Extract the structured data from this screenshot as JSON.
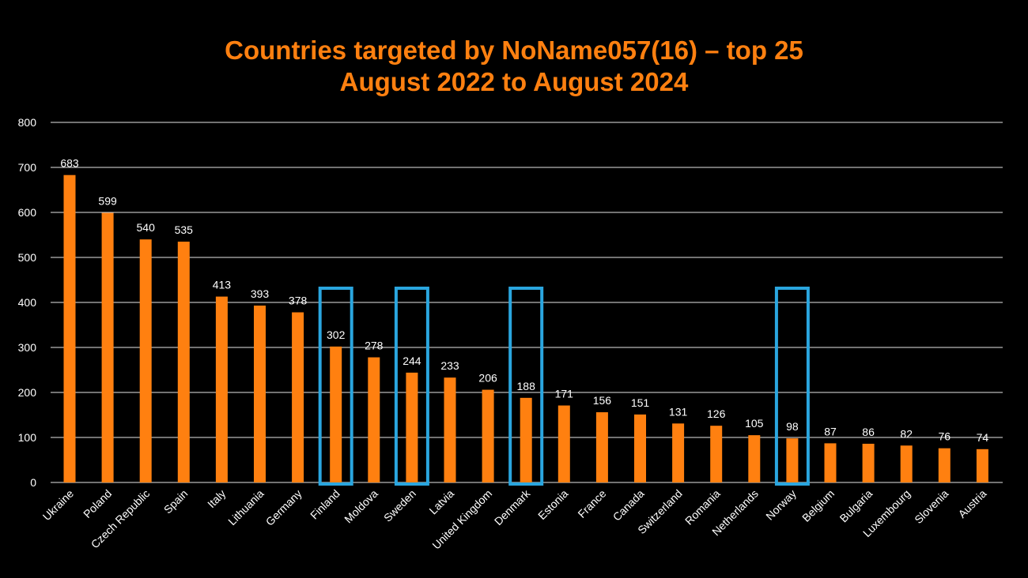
{
  "colors": {
    "background": "#000000",
    "bar": "#ff8010",
    "title": "#ff8010",
    "grid": "#ffffff",
    "highlight_box": "#2aa6df",
    "text": "#ffffff"
  },
  "chart_data": {
    "type": "bar",
    "title_lines": [
      "Countries targeted by NoName057(16) – top 25",
      "August 2022 to August 2024"
    ],
    "xlabel": "",
    "ylabel": "",
    "ylim": [
      0,
      800
    ],
    "yticks": [
      0,
      100,
      200,
      300,
      400,
      500,
      600,
      700,
      800
    ],
    "grid": true,
    "legend": "none",
    "categories": [
      "Ukraine",
      "Poland",
      "Czech Republic",
      "Spain",
      "Italy",
      "Lithuania",
      "Germany",
      "Finland",
      "Moldova",
      "Sweden",
      "Latvia",
      "United Kingdom",
      "Denmark",
      "Estonia",
      "France",
      "Canada",
      "Switzerland",
      "Romania",
      "Netherlands",
      "Norway",
      "Belgium",
      "Bulgaria",
      "Luxembourg",
      "Slovenia",
      "Austria"
    ],
    "values": [
      683,
      599,
      540,
      535,
      413,
      393,
      378,
      302,
      278,
      244,
      233,
      206,
      188,
      171,
      156,
      151,
      131,
      126,
      105,
      98,
      87,
      86,
      82,
      76,
      74
    ],
    "highlighted": [
      "Finland",
      "Sweden",
      "Denmark",
      "Norway"
    ]
  }
}
